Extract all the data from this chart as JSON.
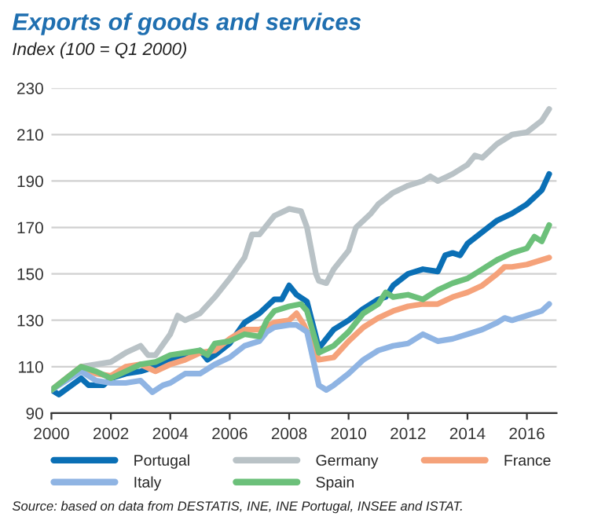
{
  "chart_data": {
    "type": "line",
    "title": "Exports of goods and services",
    "subtitle": "Index (100 = Q1 2000)",
    "xlim": [
      2000,
      2017
    ],
    "xticks": [
      2000,
      2002,
      2004,
      2006,
      2008,
      2010,
      2012,
      2014,
      2016
    ],
    "ylim": [
      90,
      230
    ],
    "yticks": [
      90,
      110,
      130,
      150,
      170,
      190,
      210,
      230
    ],
    "grid": "y",
    "legend": "bottom",
    "marker": "none",
    "line_style": "solid",
    "annotations": [
      "Source: based on data from DESTATIS, INE, INE Portugal, INSEE and ISTAT."
    ],
    "series": [
      {
        "name": "Portugal",
        "color": "#0a6fb5",
        "x": [
          2000,
          2000.25,
          2001,
          2001.25,
          2001.75,
          2002,
          2002.5,
          2003,
          2003.5,
          2004,
          2004.5,
          2005,
          2005.25,
          2005.5,
          2006,
          2006.5,
          2007,
          2007.5,
          2007.75,
          2008,
          2008.25,
          2008.6,
          2009,
          2009.25,
          2009.5,
          2010,
          2010.5,
          2011,
          2011.25,
          2011.5,
          2012,
          2012.5,
          2013,
          2013.25,
          2013.5,
          2013.75,
          2014,
          2014.5,
          2015,
          2015.5,
          2016,
          2016.5,
          2016.75
        ],
        "values": [
          100,
          98,
          105,
          102,
          102,
          105,
          107,
          108,
          110,
          113,
          115,
          117,
          113,
          115,
          120,
          129,
          133,
          139,
          139,
          145,
          141,
          138,
          118,
          122,
          126,
          130,
          135,
          139,
          140,
          145,
          150,
          152,
          151,
          158,
          159,
          158,
          163,
          168,
          173,
          176,
          180,
          186,
          193
        ]
      },
      {
        "name": "Germany",
        "color": "#b9c2c6",
        "x": [
          2000,
          2000.5,
          2001,
          2001.5,
          2002,
          2002.5,
          2003,
          2003.25,
          2003.5,
          2004,
          2004.25,
          2004.5,
          2005,
          2005.5,
          2006,
          2006.5,
          2006.75,
          2007,
          2007.5,
          2008,
          2008.4,
          2008.6,
          2008.9,
          2009,
          2009.25,
          2009.5,
          2010,
          2010.25,
          2010.75,
          2011,
          2011.5,
          2012,
          2012.5,
          2012.75,
          2013,
          2013.5,
          2014,
          2014.25,
          2014.5,
          2015,
          2015.5,
          2016,
          2016.5,
          2016.75
        ],
        "values": [
          100,
          105,
          110,
          111,
          112,
          116,
          119,
          115,
          115,
          124,
          132,
          130,
          133,
          140,
          148,
          157,
          167,
          167,
          175,
          178,
          177,
          170,
          150,
          147,
          146,
          152,
          160,
          170,
          176,
          180,
          185,
          188,
          190,
          192,
          190,
          193,
          197,
          201,
          200,
          206,
          210,
          211,
          216,
          221
        ]
      },
      {
        "name": "France",
        "color": "#f5a27a",
        "x": [
          2000,
          2000.5,
          2001,
          2001.5,
          2002,
          2002.5,
          2003,
          2003.5,
          2004,
          2004.5,
          2005,
          2005.5,
          2006,
          2006.5,
          2007,
          2007.5,
          2008,
          2008.25,
          2008.5,
          2009,
          2009.5,
          2010,
          2010.5,
          2011,
          2011.5,
          2012,
          2012.5,
          2013,
          2013.5,
          2014,
          2014.5,
          2015,
          2015.25,
          2015.5,
          2016,
          2016.75
        ],
        "values": [
          100,
          105,
          110,
          107,
          106,
          110,
          111,
          108,
          111,
          113,
          116,
          117,
          122,
          126,
          126,
          129,
          130,
          133,
          128,
          113,
          114,
          121,
          127,
          131,
          134,
          136,
          137,
          137,
          140,
          142,
          145,
          150,
          153,
          153,
          154,
          157
        ]
      },
      {
        "name": "Italy",
        "color": "#8fb4e3",
        "x": [
          2000,
          2000.5,
          2001,
          2001.5,
          2002,
          2002.5,
          2003,
          2003.4,
          2003.75,
          2004,
          2004.5,
          2005,
          2005.5,
          2006,
          2006.5,
          2007,
          2007.25,
          2007.5,
          2008,
          2008.25,
          2008.6,
          2009,
          2009.25,
          2009.5,
          2010,
          2010.5,
          2011,
          2011.5,
          2012,
          2012.5,
          2013,
          2013.5,
          2014,
          2014.5,
          2015,
          2015.25,
          2015.5,
          2016,
          2016.5,
          2016.75
        ],
        "values": [
          100,
          104,
          108,
          104,
          103,
          103,
          104,
          99,
          102,
          103,
          107,
          107,
          111,
          114,
          119,
          121,
          125,
          127,
          128,
          128,
          125,
          102,
          100,
          102,
          107,
          113,
          117,
          119,
          120,
          124,
          121,
          122,
          124,
          126,
          129,
          131,
          130,
          132,
          134,
          137
        ]
      },
      {
        "name": "Spain",
        "color": "#6cc07a",
        "x": [
          2000,
          2000.5,
          2001,
          2001.5,
          2002,
          2002.5,
          2003,
          2003.5,
          2004,
          2004.5,
          2005,
          2005.25,
          2005.5,
          2006,
          2006.5,
          2007,
          2007.25,
          2007.5,
          2008,
          2008.4,
          2008.6,
          2009,
          2009.5,
          2010,
          2010.5,
          2011,
          2011.25,
          2011.5,
          2012,
          2012.5,
          2013,
          2013.5,
          2014,
          2014.5,
          2015,
          2015.5,
          2016,
          2016.25,
          2016.5,
          2016.75
        ],
        "values": [
          100,
          105,
          110,
          108,
          105,
          108,
          111,
          112,
          115,
          116,
          117,
          115,
          120,
          121,
          124,
          123,
          130,
          134,
          136,
          137,
          134,
          116,
          119,
          125,
          133,
          137,
          142,
          140,
          141,
          139,
          143,
          146,
          148,
          152,
          156,
          159,
          161,
          166,
          164,
          171
        ]
      }
    ]
  }
}
